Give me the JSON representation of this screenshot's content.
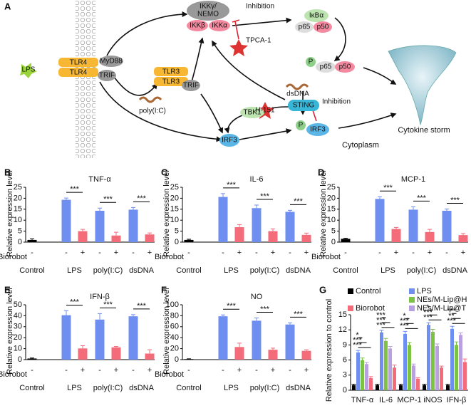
{
  "panel_a": {
    "letter": "A",
    "lps": "LPS",
    "tlr4_a": "TLR4",
    "tlr4_b": "TLR4",
    "myd88": "MyD88",
    "trif_a": "TRIF",
    "tlr3_a": "TLR3",
    "tlr3_b": "TLR3",
    "trif_b": "TRIF",
    "polyic": "poly(I:C)",
    "ikk_gamma": "IKKγ/",
    "nemo": "NEMO",
    "ikk_beta": "IKKβ",
    "ikk_alpha": "IKKα",
    "inhibition_a": "Inhibition",
    "tpca": "TPCA-1",
    "ikb": "IκBα",
    "p65_a": "p65",
    "p50_a": "p50",
    "p_a": "P",
    "p65_b": "p65",
    "p50_b": "p50",
    "dsdna": "dsDNA",
    "sting": "STING",
    "inhibition_b": "Inhibition",
    "h151": "H-151",
    "tbk1": "TBK1",
    "irf3_a": "IRF3",
    "p_b": "P",
    "irf3_b": "IRF3",
    "cytoplasm": "Cytoplasm",
    "storm": "Cytokine storm"
  },
  "chart_data": [
    {
      "type": "bar",
      "letter": "B",
      "title": "TNF-α",
      "y_label": "Relative expression level",
      "groups": [
        "Control",
        "LPS",
        "poly(I:C)",
        "dsDNA"
      ],
      "treatment_label": "Biorobot",
      "treatment": [
        "-",
        "-",
        "+",
        "-",
        "+",
        "-",
        "+"
      ],
      "colors": [
        "#000000",
        "#6f8ff0",
        "#f46b7a",
        "#6f8ff0",
        "#f46b7a",
        "#6f8ff0",
        "#f46b7a"
      ],
      "values": [
        1.0,
        19.3,
        5.0,
        14.3,
        3.0,
        14.8,
        3.5
      ],
      "errors": [
        0.5,
        0.8,
        0.8,
        1.2,
        1.5,
        1.0,
        0.7
      ],
      "significance": [
        "***",
        "***",
        "***"
      ],
      "ylim": [
        0,
        25
      ],
      "yticks": [
        0,
        5,
        10,
        15,
        20,
        25
      ]
    },
    {
      "type": "bar",
      "letter": "C",
      "title": "IL-6",
      "y_label": "Relative expression level",
      "groups": [
        "Control",
        "LPS",
        "poly(I:C)",
        "dsDNA"
      ],
      "treatment_label": "Biorobot",
      "treatment": [
        "-",
        "-",
        "+",
        "-",
        "+",
        "-",
        "+"
      ],
      "colors": [
        "#000000",
        "#6f8ff0",
        "#f46b7a",
        "#6f8ff0",
        "#f46b7a",
        "#6f8ff0",
        "#f46b7a"
      ],
      "values": [
        1.0,
        20.6,
        6.8,
        15.5,
        5.0,
        13.8,
        3.3
      ],
      "errors": [
        0.3,
        1.5,
        1.2,
        1.4,
        1.0,
        0.7,
        0.8
      ],
      "significance": [
        "***",
        "***",
        "***"
      ],
      "ylim": [
        0,
        25
      ],
      "yticks": [
        0,
        5,
        10,
        15,
        20,
        25
      ]
    },
    {
      "type": "bar",
      "letter": "D",
      "title": "MCP-1",
      "y_label": "Relative expression level",
      "groups": [
        "Control",
        "LPS",
        "poly(I:C)",
        "dsDNA"
      ],
      "treatment_label": "Biorobot",
      "treatment": [
        "-",
        "-",
        "+",
        "-",
        "+",
        "-",
        "+"
      ],
      "colors": [
        "#000000",
        "#6f8ff0",
        "#f46b7a",
        "#6f8ff0",
        "#f46b7a",
        "#6f8ff0",
        "#f46b7a"
      ],
      "values": [
        1.5,
        19.7,
        6.0,
        14.8,
        4.6,
        14.3,
        3.2
      ],
      "errors": [
        0.3,
        1.0,
        0.7,
        1.3,
        1.2,
        0.8,
        0.7
      ],
      "significance": [
        "***",
        "***",
        "***"
      ],
      "ylim": [
        0,
        25
      ],
      "yticks": [
        0,
        5,
        10,
        15,
        20,
        25
      ]
    },
    {
      "type": "bar",
      "letter": "E",
      "title": "IFN-β",
      "y_label": "Relative expression level",
      "groups": [
        "Control",
        "LPS",
        "poly(I:C)",
        "dsDNA"
      ],
      "treatment_label": "Biorobot",
      "treatment": [
        "-",
        "-",
        "+",
        "-",
        "+",
        "-",
        "+"
      ],
      "colors": [
        "#000000",
        "#6f8ff0",
        "#f46b7a",
        "#6f8ff0",
        "#f46b7a",
        "#6f8ff0",
        "#f46b7a"
      ],
      "values": [
        1.0,
        40.5,
        10.2,
        36.5,
        11.2,
        39.5,
        5.5
      ],
      "errors": [
        0.5,
        4.0,
        2.5,
        5.5,
        0.8,
        1.5,
        3.5
      ],
      "significance": [
        "***",
        "***",
        "***"
      ],
      "ylim": [
        0,
        50
      ],
      "yticks": [
        0,
        10,
        20,
        30,
        40,
        50
      ]
    },
    {
      "type": "bar",
      "letter": "F",
      "title": "NO",
      "y_label": "Relative expression level",
      "groups": [
        "Control",
        "LPS",
        "poly(I:C)",
        "dsDNA"
      ],
      "treatment_label": "Biorobot",
      "treatment": [
        "-",
        "-",
        "+",
        "-",
        "+",
        "-",
        "+"
      ],
      "colors": [
        "#000000",
        "#6f8ff0",
        "#f46b7a",
        "#6f8ff0",
        "#f46b7a",
        "#6f8ff0",
        "#f46b7a"
      ],
      "values": [
        1.0,
        79,
        23,
        71,
        18,
        64,
        16
      ],
      "errors": [
        0.5,
        2.5,
        7,
        5,
        3,
        3,
        2
      ],
      "significance": [
        "***",
        "***",
        "***"
      ],
      "ylim": [
        0,
        100
      ],
      "yticks": [
        0,
        20,
        40,
        60,
        80,
        100
      ]
    },
    {
      "type": "grouped_bar",
      "letter": "G",
      "y_label": "Relative expression to control",
      "categories": [
        "TNF-α",
        "IL-6",
        "MCP-1",
        "iNOS",
        "IFN-β"
      ],
      "series": [
        {
          "name": "Control",
          "color": "#000000",
          "values": [
            1.0,
            1.0,
            1.0,
            1.0,
            1.0
          ],
          "errors": [
            0.2,
            0.2,
            0.2,
            0.2,
            0.2
          ]
        },
        {
          "name": "LPS",
          "color": "#6f8ff0",
          "values": [
            7.5,
            11.5,
            11.2,
            13.0,
            12.2
          ],
          "errors": [
            0.4,
            0.4,
            0.5,
            0.4,
            0.5
          ]
        },
        {
          "name": "NEs/M-Lip@H",
          "color": "#7cc243",
          "values": [
            6.0,
            9.8,
            9.0,
            11.6,
            9.0
          ],
          "errors": [
            0.4,
            0.5,
            0.5,
            0.5,
            0.6
          ]
        },
        {
          "name": "NEs/M-Lip@T",
          "color": "#b9a0e0",
          "values": [
            5.2,
            8.3,
            4.9,
            8.8,
            11.0
          ],
          "errors": [
            0.3,
            0.4,
            0.3,
            0.4,
            0.4
          ]
        },
        {
          "name": "Biorobot",
          "color": "#f46b7a",
          "values": [
            2.4,
            4.5,
            2.3,
            4.5,
            5.6
          ],
          "errors": [
            0.3,
            0.5,
            0.2,
            0.3,
            0.6
          ]
        }
      ],
      "significance": [
        [
          "***",
          "***",
          "*"
        ],
        [
          "***",
          "***",
          "***"
        ],
        [
          "***",
          "***",
          "*"
        ],
        [
          "***",
          "***",
          "*"
        ],
        [
          "***",
          "**",
          "***"
        ]
      ],
      "ylim": [
        0,
        15
      ],
      "yticks": [
        0,
        3,
        6,
        9,
        12,
        15
      ]
    }
  ]
}
